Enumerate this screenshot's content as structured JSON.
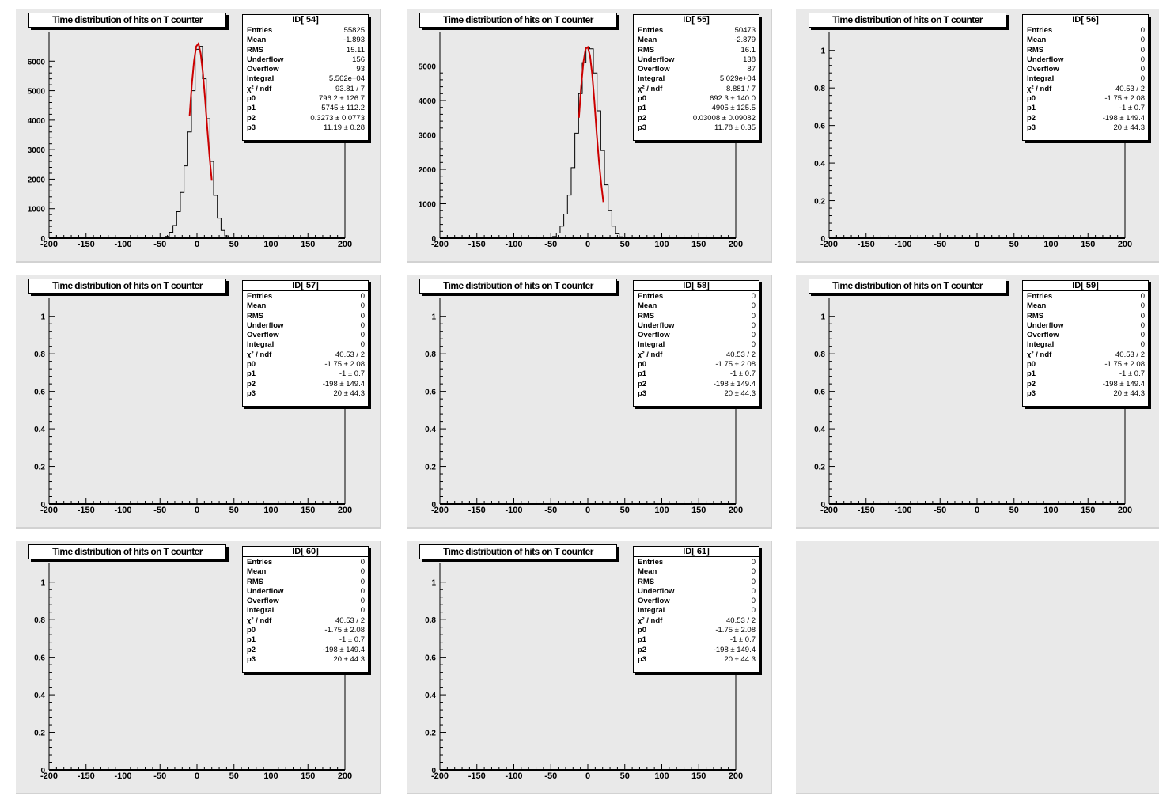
{
  "pads": [
    {
      "chart_data": {
        "type": "histogram",
        "title": "Time distribution of hits on T counter",
        "stats_id": "ID[ 54]",
        "stats": [
          {
            "name": "Entries",
            "value": "55825"
          },
          {
            "name": "Mean",
            "value": "-1.893"
          },
          {
            "name": "RMS",
            "value": "15.11"
          },
          {
            "name": "Underflow",
            "value": "156"
          },
          {
            "name": "Overflow",
            "value": "93"
          },
          {
            "name": "Integral",
            "value": "5.562e+04"
          },
          {
            "name": "χ² / ndf",
            "value": "93.81 / 7"
          },
          {
            "name": "p0",
            "value": "796.2 ± 126.7"
          },
          {
            "name": "p1",
            "value": "5745 ± 112.2"
          },
          {
            "name": "p2",
            "value": "0.3273 ± 0.0773"
          },
          {
            "name": "p3",
            "value": "11.19 ± 0.28"
          }
        ],
        "xlim": [
          -200,
          200
        ],
        "ylim": [
          0,
          7000
        ],
        "x_ticks": [
          "-200",
          "-150",
          "-100",
          "-50",
          "0",
          "50",
          "100",
          "150",
          "200"
        ],
        "y_ticks": [
          "0",
          "1000",
          "2000",
          "3000",
          "4000",
          "5000",
          "6000"
        ],
        "y_tick_values": [
          0,
          1000,
          2000,
          3000,
          4000,
          5000,
          6000
        ],
        "histogram": {
          "x": [
            -50,
            -45,
            -40,
            -35,
            -30,
            -25,
            -20,
            -15,
            -10,
            -5,
            0,
            5,
            10,
            15,
            20,
            25,
            30,
            35,
            40,
            45,
            50
          ],
          "y": [
            0,
            15,
            60,
            200,
            430,
            900,
            1550,
            2450,
            3600,
            5000,
            6400,
            6500,
            5400,
            4050,
            2600,
            1450,
            680,
            260,
            80,
            20,
            0
          ]
        },
        "fit": {
          "x": [
            -10,
            -7,
            -4,
            -1,
            2,
            5,
            8,
            11,
            14,
            17,
            20
          ],
          "y": [
            4150,
            5200,
            6000,
            6500,
            6600,
            6250,
            5600,
            4700,
            3700,
            2750,
            1950
          ]
        }
      }
    },
    {
      "chart_data": {
        "type": "histogram",
        "title": "Time distribution of hits on T counter",
        "stats_id": "ID[ 55]",
        "stats": [
          {
            "name": "Entries",
            "value": "50473"
          },
          {
            "name": "Mean",
            "value": "-2.879"
          },
          {
            "name": "RMS",
            "value": "16.1"
          },
          {
            "name": "Underflow",
            "value": "138"
          },
          {
            "name": "Overflow",
            "value": "87"
          },
          {
            "name": "Integral",
            "value": "5.029e+04"
          },
          {
            "name": "χ² / ndf",
            "value": "8.881 / 7"
          },
          {
            "name": "p0",
            "value": "692.3 ± 140.0"
          },
          {
            "name": "p1",
            "value": "4905 ± 125.5"
          },
          {
            "name": "p2",
            "value": "0.03008 ± 0.09082"
          },
          {
            "name": "p3",
            "value": "11.78 ± 0.35"
          }
        ],
        "xlim": [
          -200,
          200
        ],
        "ylim": [
          0,
          6000
        ],
        "x_ticks": [
          "-200",
          "-150",
          "-100",
          "-50",
          "0",
          "50",
          "100",
          "150",
          "200"
        ],
        "y_ticks": [
          "0",
          "1000",
          "2000",
          "3000",
          "4000",
          "5000"
        ],
        "y_tick_values": [
          0,
          1000,
          2000,
          3000,
          4000,
          5000
        ],
        "histogram": {
          "x": [
            -55,
            -50,
            -45,
            -40,
            -35,
            -30,
            -25,
            -20,
            -15,
            -10,
            -5,
            0,
            5,
            10,
            15,
            20,
            25,
            30,
            35,
            40,
            45,
            50,
            55
          ],
          "y": [
            0,
            10,
            50,
            150,
            350,
            700,
            1250,
            2050,
            3050,
            4200,
            5100,
            5550,
            5500,
            4800,
            3700,
            2550,
            1550,
            800,
            350,
            130,
            40,
            10,
            0
          ]
        },
        "fit": {
          "x": [
            -12,
            -9,
            -6,
            -3,
            0,
            3,
            6,
            9,
            12,
            15,
            18,
            21
          ],
          "y": [
            3500,
            4400,
            5100,
            5500,
            5550,
            5300,
            4750,
            3950,
            3050,
            2250,
            1600,
            1050
          ]
        }
      }
    },
    {
      "chart_data": {
        "type": "histogram",
        "title": "Time distribution of hits on T counter",
        "stats_id": "ID[ 56]",
        "stats": [
          {
            "name": "Entries",
            "value": "0"
          },
          {
            "name": "Mean",
            "value": "0"
          },
          {
            "name": "RMS",
            "value": "0"
          },
          {
            "name": "Underflow",
            "value": "0"
          },
          {
            "name": "Overflow",
            "value": "0"
          },
          {
            "name": "Integral",
            "value": "0"
          },
          {
            "name": "χ² / ndf",
            "value": "40.53 / 2"
          },
          {
            "name": "p0",
            "value": "-1.75 ± 2.08"
          },
          {
            "name": "p1",
            "value": "-1 ± 0.7"
          },
          {
            "name": "p2",
            "value": "-198 ± 149.4"
          },
          {
            "name": "p3",
            "value": "20 ± 44.3"
          }
        ],
        "xlim": [
          -200,
          200
        ],
        "ylim": [
          0,
          1.1
        ],
        "x_ticks": [
          "-200",
          "-150",
          "-100",
          "-50",
          "0",
          "50",
          "100",
          "150",
          "200"
        ],
        "y_ticks": [
          "0",
          "0.2",
          "0.4",
          "0.6",
          "0.8",
          "1"
        ],
        "y_tick_values": [
          0,
          0.2,
          0.4,
          0.6,
          0.8,
          1
        ],
        "histogram": {
          "x": [],
          "y": []
        },
        "fit": {
          "x": [],
          "y": []
        }
      }
    },
    {
      "chart_data": {
        "type": "histogram",
        "title": "Time distribution of hits on T counter",
        "stats_id": "ID[ 57]",
        "stats": [
          {
            "name": "Entries",
            "value": "0"
          },
          {
            "name": "Mean",
            "value": "0"
          },
          {
            "name": "RMS",
            "value": "0"
          },
          {
            "name": "Underflow",
            "value": "0"
          },
          {
            "name": "Overflow",
            "value": "0"
          },
          {
            "name": "Integral",
            "value": "0"
          },
          {
            "name": "χ² / ndf",
            "value": "40.53 / 2"
          },
          {
            "name": "p0",
            "value": "-1.75 ± 2.08"
          },
          {
            "name": "p1",
            "value": "-1 ± 0.7"
          },
          {
            "name": "p2",
            "value": "-198 ± 149.4"
          },
          {
            "name": "p3",
            "value": "20 ± 44.3"
          }
        ],
        "xlim": [
          -200,
          200
        ],
        "ylim": [
          0,
          1.1
        ],
        "x_ticks": [
          "-200",
          "-150",
          "-100",
          "-50",
          "0",
          "50",
          "100",
          "150",
          "200"
        ],
        "y_ticks": [
          "0",
          "0.2",
          "0.4",
          "0.6",
          "0.8",
          "1"
        ],
        "y_tick_values": [
          0,
          0.2,
          0.4,
          0.6,
          0.8,
          1
        ],
        "histogram": {
          "x": [],
          "y": []
        },
        "fit": {
          "x": [],
          "y": []
        }
      }
    },
    {
      "chart_data": {
        "type": "histogram",
        "title": "Time distribution of hits on T counter",
        "stats_id": "ID[ 58]",
        "stats": [
          {
            "name": "Entries",
            "value": "0"
          },
          {
            "name": "Mean",
            "value": "0"
          },
          {
            "name": "RMS",
            "value": "0"
          },
          {
            "name": "Underflow",
            "value": "0"
          },
          {
            "name": "Overflow",
            "value": "0"
          },
          {
            "name": "Integral",
            "value": "0"
          },
          {
            "name": "χ² / ndf",
            "value": "40.53 / 2"
          },
          {
            "name": "p0",
            "value": "-1.75 ± 2.08"
          },
          {
            "name": "p1",
            "value": "-1 ± 0.7"
          },
          {
            "name": "p2",
            "value": "-198 ± 149.4"
          },
          {
            "name": "p3",
            "value": "20 ± 44.3"
          }
        ],
        "xlim": [
          -200,
          200
        ],
        "ylim": [
          0,
          1.1
        ],
        "x_ticks": [
          "-200",
          "-150",
          "-100",
          "-50",
          "0",
          "50",
          "100",
          "150",
          "200"
        ],
        "y_ticks": [
          "0",
          "0.2",
          "0.4",
          "0.6",
          "0.8",
          "1"
        ],
        "y_tick_values": [
          0,
          0.2,
          0.4,
          0.6,
          0.8,
          1
        ],
        "histogram": {
          "x": [],
          "y": []
        },
        "fit": {
          "x": [],
          "y": []
        }
      }
    },
    {
      "chart_data": {
        "type": "histogram",
        "title": "Time distribution of hits on T counter",
        "stats_id": "ID[ 59]",
        "stats": [
          {
            "name": "Entries",
            "value": "0"
          },
          {
            "name": "Mean",
            "value": "0"
          },
          {
            "name": "RMS",
            "value": "0"
          },
          {
            "name": "Underflow",
            "value": "0"
          },
          {
            "name": "Overflow",
            "value": "0"
          },
          {
            "name": "Integral",
            "value": "0"
          },
          {
            "name": "χ² / ndf",
            "value": "40.53 / 2"
          },
          {
            "name": "p0",
            "value": "-1.75 ± 2.08"
          },
          {
            "name": "p1",
            "value": "-1 ± 0.7"
          },
          {
            "name": "p2",
            "value": "-198 ± 149.4"
          },
          {
            "name": "p3",
            "value": "20 ± 44.3"
          }
        ],
        "xlim": [
          -200,
          200
        ],
        "ylim": [
          0,
          1.1
        ],
        "x_ticks": [
          "-200",
          "-150",
          "-100",
          "-50",
          "0",
          "50",
          "100",
          "150",
          "200"
        ],
        "y_ticks": [
          "0",
          "0.2",
          "0.4",
          "0.6",
          "0.8",
          "1"
        ],
        "y_tick_values": [
          0,
          0.2,
          0.4,
          0.6,
          0.8,
          1
        ],
        "histogram": {
          "x": [],
          "y": []
        },
        "fit": {
          "x": [],
          "y": []
        }
      }
    },
    {
      "chart_data": {
        "type": "histogram",
        "title": "Time distribution of hits on T counter",
        "stats_id": "ID[ 60]",
        "stats": [
          {
            "name": "Entries",
            "value": "0"
          },
          {
            "name": "Mean",
            "value": "0"
          },
          {
            "name": "RMS",
            "value": "0"
          },
          {
            "name": "Underflow",
            "value": "0"
          },
          {
            "name": "Overflow",
            "value": "0"
          },
          {
            "name": "Integral",
            "value": "0"
          },
          {
            "name": "χ² / ndf",
            "value": "40.53 / 2"
          },
          {
            "name": "p0",
            "value": "-1.75 ± 2.08"
          },
          {
            "name": "p1",
            "value": "-1 ± 0.7"
          },
          {
            "name": "p2",
            "value": "-198 ± 149.4"
          },
          {
            "name": "p3",
            "value": "20 ± 44.3"
          }
        ],
        "xlim": [
          -200,
          200
        ],
        "ylim": [
          0,
          1.1
        ],
        "x_ticks": [
          "-200",
          "-150",
          "-100",
          "-50",
          "0",
          "50",
          "100",
          "150",
          "200"
        ],
        "y_ticks": [
          "0",
          "0.2",
          "0.4",
          "0.6",
          "0.8",
          "1"
        ],
        "y_tick_values": [
          0,
          0.2,
          0.4,
          0.6,
          0.8,
          1
        ],
        "histogram": {
          "x": [],
          "y": []
        },
        "fit": {
          "x": [],
          "y": []
        }
      }
    },
    {
      "chart_data": {
        "type": "histogram",
        "title": "Time distribution of hits on T counter",
        "stats_id": "ID[ 61]",
        "stats": [
          {
            "name": "Entries",
            "value": "0"
          },
          {
            "name": "Mean",
            "value": "0"
          },
          {
            "name": "RMS",
            "value": "0"
          },
          {
            "name": "Underflow",
            "value": "0"
          },
          {
            "name": "Overflow",
            "value": "0"
          },
          {
            "name": "Integral",
            "value": "0"
          },
          {
            "name": "χ² / ndf",
            "value": "40.53 / 2"
          },
          {
            "name": "p0",
            "value": "-1.75 ± 2.08"
          },
          {
            "name": "p1",
            "value": "-1 ± 0.7"
          },
          {
            "name": "p2",
            "value": "-198 ± 149.4"
          },
          {
            "name": "p3",
            "value": "20 ± 44.3"
          }
        ],
        "xlim": [
          -200,
          200
        ],
        "ylim": [
          0,
          1.1
        ],
        "x_ticks": [
          "-200",
          "-150",
          "-100",
          "-50",
          "0",
          "50",
          "100",
          "150",
          "200"
        ],
        "y_ticks": [
          "0",
          "0.2",
          "0.4",
          "0.6",
          "0.8",
          "1"
        ],
        "y_tick_values": [
          0,
          0.2,
          0.4,
          0.6,
          0.8,
          1
        ],
        "histogram": {
          "x": [],
          "y": []
        },
        "fit": {
          "x": [],
          "y": []
        }
      }
    }
  ],
  "colors": {
    "pad_background": "#e9e9e9",
    "histogram_line": "#000000",
    "fit_line": "#cc0000"
  }
}
